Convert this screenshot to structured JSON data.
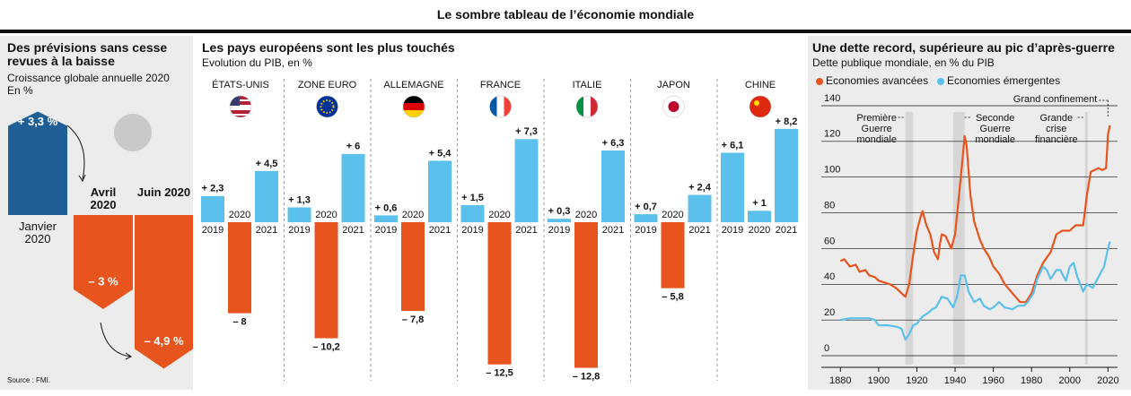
{
  "title": "Le sombre tableau de l’économie mondiale",
  "source": "Source : FMI.",
  "chart_data": [
    {
      "type": "arrow-bar",
      "title": "Des prévisions sans cesse revues à la baisse",
      "subtitle": "Croissance globale annuelle 2020",
      "unit_label": "En %",
      "categories": [
        "Janvier 2020",
        "Avril 2020",
        "Juin 2020"
      ],
      "values": [
        3.3,
        -3,
        -4.9
      ],
      "value_labels": [
        "+ 3,3 %",
        "– 3 %",
        "– 4,9 %"
      ],
      "positive_color": "#1f5f95",
      "negative_color": "#e8541e"
    },
    {
      "type": "grouped-bar",
      "title": "Les pays européens sont les plus touchés",
      "subtitle": "Evolution du PIB, en %",
      "categories": [
        "2019",
        "2020",
        "2021"
      ],
      "positive_color": "#5bc0eb",
      "negative_color": "#e8541e",
      "series": [
        {
          "name": "ÉTATS-UNIS",
          "values": [
            2.3,
            -8,
            4.5
          ],
          "value_labels": [
            "+ 2,3",
            "– 8",
            "+ 4,5"
          ]
        },
        {
          "name": "ZONE EURO",
          "values": [
            1.3,
            -10.2,
            6
          ],
          "value_labels": [
            "+ 1,3",
            "– 10,2",
            "+ 6"
          ]
        },
        {
          "name": "ALLEMAGNE",
          "values": [
            0.6,
            -7.8,
            5.4
          ],
          "value_labels": [
            "+ 0,6",
            "– 7,8",
            "+ 5,4"
          ]
        },
        {
          "name": "FRANCE",
          "values": [
            1.5,
            -12.5,
            7.3
          ],
          "value_labels": [
            "+ 1,5",
            "– 12,5",
            "+ 7,3"
          ]
        },
        {
          "name": "ITALIE",
          "values": [
            0.3,
            -12.8,
            6.3
          ],
          "value_labels": [
            "+ 0,3",
            "– 12,8",
            "+ 6,3"
          ]
        },
        {
          "name": "JAPON",
          "values": [
            0.7,
            -5.8,
            2.4
          ],
          "value_labels": [
            "+ 0,7",
            "– 5,8",
            "+ 2,4"
          ]
        },
        {
          "name": "CHINE",
          "values": [
            6.1,
            1,
            8.2
          ],
          "value_labels": [
            "+ 6,1",
            "+ 1",
            "+ 8,2"
          ]
        }
      ]
    },
    {
      "type": "line",
      "title": "Une dette record, supérieure au pic d’après-guerre",
      "subtitle": "Dette publique mondiale, en % du PIB",
      "xlim": [
        1870,
        2025
      ],
      "xticks": [
        1880,
        1900,
        1920,
        1940,
        1960,
        1980,
        2000,
        2020
      ],
      "ylim": [
        -5,
        145
      ],
      "yticks": [
        0,
        20,
        40,
        60,
        80,
        100,
        120,
        140
      ],
      "grid": true,
      "annotations": [
        {
          "label": "Première Guerre mondiale",
          "x": [
            1914,
            1918
          ]
        },
        {
          "label": "Seconde Guerre mondiale",
          "x": [
            1939,
            1945
          ]
        },
        {
          "label": "Grande crise financière",
          "x": [
            2008,
            2009
          ]
        },
        {
          "label": "Grand confinement",
          "x": 2020
        }
      ],
      "series": [
        {
          "name": "Economies avancées",
          "color": "#e8541e",
          "x": [
            1880,
            1882,
            1885,
            1888,
            1890,
            1893,
            1895,
            1898,
            1900,
            1903,
            1906,
            1909,
            1912,
            1914,
            1916,
            1918,
            1920,
            1922,
            1923,
            1925,
            1927,
            1929,
            1931,
            1932,
            1933,
            1935,
            1938,
            1940,
            1943,
            1945,
            1946,
            1948,
            1950,
            1953,
            1955,
            1958,
            1960,
            1963,
            1966,
            1970,
            1974,
            1977,
            1980,
            1983,
            1986,
            1990,
            1993,
            1996,
            2000,
            2003,
            2007,
            2009,
            2011,
            2013,
            2015,
            2017,
            2019,
            2020,
            2021
          ],
          "values": [
            53,
            54,
            50,
            51,
            47,
            48,
            45,
            44,
            42,
            41,
            40,
            38,
            35,
            33,
            40,
            56,
            70,
            78,
            81,
            73,
            68,
            58,
            54,
            62,
            68,
            67,
            60,
            68,
            100,
            123,
            118,
            90,
            75,
            65,
            60,
            55,
            50,
            46,
            40,
            35,
            30,
            30,
            35,
            45,
            52,
            58,
            68,
            70,
            70,
            73,
            73,
            90,
            103,
            104,
            105,
            104,
            105,
            124,
            129
          ]
        },
        {
          "name": "Economies émergentes",
          "color": "#5bc0eb",
          "x": [
            1880,
            1885,
            1890,
            1895,
            1898,
            1900,
            1905,
            1910,
            1912,
            1914,
            1916,
            1918,
            1920,
            1923,
            1926,
            1928,
            1930,
            1933,
            1936,
            1939,
            1941,
            1943,
            1945,
            1947,
            1950,
            1953,
            1955,
            1958,
            1960,
            1963,
            1966,
            1970,
            1973,
            1976,
            1978,
            1981,
            1983,
            1986,
            1988,
            1990,
            1993,
            1995,
            1998,
            2000,
            2002,
            2004,
            2007,
            2009,
            2012,
            2015,
            2018,
            2020,
            2021
          ],
          "values": [
            20,
            21,
            21,
            21,
            20,
            17,
            17,
            16,
            15,
            9,
            12,
            17,
            18,
            22,
            24,
            26,
            27,
            33,
            32,
            27,
            33,
            45,
            45,
            36,
            30,
            32,
            28,
            26,
            27,
            30,
            27,
            26,
            28,
            28,
            30,
            35,
            43,
            50,
            48,
            43,
            48,
            48,
            42,
            50,
            52,
            44,
            36,
            40,
            38,
            44,
            50,
            60,
            64
          ]
        }
      ]
    }
  ]
}
